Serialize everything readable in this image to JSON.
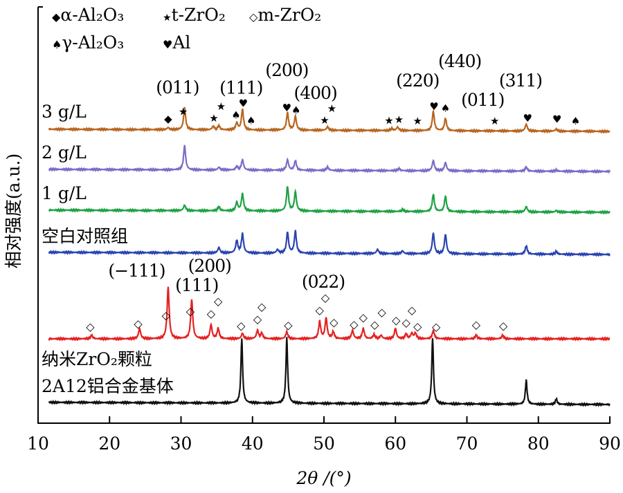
{
  "chart_data": {
    "type": "line",
    "title": "",
    "xlabel": "2θ /(°)",
    "ylabel": "相对强度(a.u.)",
    "xlim": [
      10,
      90
    ],
    "xticks": [
      "10",
      "20",
      "30",
      "40",
      "50",
      "60",
      "70",
      "80",
      "90"
    ],
    "grid": false,
    "legend": {
      "placement": "top-left",
      "entries": [
        {
          "symbol": "◆",
          "label": "α-Al₂O₃"
        },
        {
          "symbol": "★",
          "label": "t-ZrO₂"
        },
        {
          "symbol": "◇",
          "label": "m-ZrO₂"
        },
        {
          "symbol": "♠",
          "label": "γ-Al₂O₃"
        },
        {
          "symbol": "♥",
          "label": "Al"
        }
      ]
    },
    "series": [
      {
        "name": "3 g/L",
        "color": "#b8661f",
        "peaks": [
          [
            28.2,
            3
          ],
          [
            30.5,
            32
          ],
          [
            34.5,
            5
          ],
          [
            35.3,
            6
          ],
          [
            37.8,
            10
          ],
          [
            38.6,
            30
          ],
          [
            44.9,
            25
          ],
          [
            46.0,
            20
          ],
          [
            50.5,
            5
          ],
          [
            59.5,
            3
          ],
          [
            60.3,
            5
          ],
          [
            65.3,
            28
          ],
          [
            67.0,
            18
          ],
          [
            78.3,
            10
          ],
          [
            82.5,
            3
          ]
        ]
      },
      {
        "name": "2 g/L",
        "color": "#7a6cc8",
        "peaks": [
          [
            30.5,
            35
          ],
          [
            35.3,
            4
          ],
          [
            37.8,
            5
          ],
          [
            38.6,
            15
          ],
          [
            44.9,
            15
          ],
          [
            46.0,
            14
          ],
          [
            50.5,
            5
          ],
          [
            60.5,
            3
          ],
          [
            65.3,
            15
          ],
          [
            67.0,
            12
          ],
          [
            78.3,
            6
          ],
          [
            82.5,
            2
          ]
        ]
      },
      {
        "name": "1 g/L",
        "color": "#1ea244",
        "peaks": [
          [
            30.5,
            8
          ],
          [
            35.3,
            6
          ],
          [
            37.8,
            12
          ],
          [
            38.6,
            25
          ],
          [
            44.9,
            35
          ],
          [
            46.0,
            28
          ],
          [
            61.0,
            3
          ],
          [
            65.3,
            25
          ],
          [
            67.0,
            22
          ],
          [
            78.3,
            8
          ],
          [
            82.5,
            2
          ]
        ]
      },
      {
        "name": "空白对照组",
        "color": "#2a44b0",
        "peaks": [
          [
            35.3,
            8
          ],
          [
            37.8,
            18
          ],
          [
            38.6,
            28
          ],
          [
            43.5,
            5
          ],
          [
            44.9,
            30
          ],
          [
            46.0,
            32
          ],
          [
            57.5,
            6
          ],
          [
            61.0,
            4
          ],
          [
            65.3,
            30
          ],
          [
            67.0,
            28
          ],
          [
            78.3,
            12
          ],
          [
            82.5,
            4
          ]
        ]
      },
      {
        "name": "纳米ZrO₂颗粒",
        "color": "#e42222",
        "peaks": [
          [
            17.5,
            5
          ],
          [
            24.2,
            15
          ],
          [
            28.2,
            75
          ],
          [
            31.5,
            57
          ],
          [
            34.2,
            20
          ],
          [
            35.2,
            15
          ],
          [
            38.6,
            8
          ],
          [
            40.7,
            12
          ],
          [
            41.3,
            8
          ],
          [
            44.8,
            10
          ],
          [
            49.4,
            25
          ],
          [
            50.3,
            30
          ],
          [
            51.3,
            10
          ],
          [
            54.0,
            12
          ],
          [
            55.5,
            15
          ],
          [
            57.0,
            6
          ],
          [
            58.0,
            5
          ],
          [
            60.0,
            15
          ],
          [
            61.5,
            7
          ],
          [
            62.3,
            8
          ],
          [
            62.8,
            8
          ],
          [
            65.3,
            12
          ],
          [
            71.3,
            5
          ],
          [
            75.0,
            5
          ]
        ]
      },
      {
        "name": "2A12铝合金基体",
        "color": "#111111",
        "peaks": [
          [
            38.5,
            93
          ],
          [
            44.8,
            95
          ],
          [
            65.2,
            95
          ],
          [
            78.3,
            35
          ],
          [
            82.5,
            8
          ]
        ]
      }
    ],
    "markers": {
      "3 g/L": [
        [
          "◆",
          28.2
        ],
        [
          "★",
          30.3
        ],
        [
          "★",
          34.6
        ],
        [
          "★",
          35.6
        ],
        [
          "♠",
          37.7
        ],
        [
          "♥",
          38.7
        ],
        [
          "♠",
          39.8
        ],
        [
          "♥",
          44.8
        ],
        [
          "♠",
          46.1
        ],
        [
          "★",
          50.1
        ],
        [
          "★",
          51.1
        ],
        [
          "★",
          59.1
        ],
        [
          "★",
          60.5
        ],
        [
          "★",
          63.1
        ],
        [
          "♥",
          65.4
        ],
        [
          "♠",
          67.0
        ],
        [
          "★",
          73.9
        ],
        [
          "♥",
          78.5
        ],
        [
          "♥",
          82.6
        ],
        [
          "♠",
          85.2
        ]
      ],
      "纳米ZrO₂颗粒": [
        [
          "◇",
          17.3
        ],
        [
          "◇",
          24.0
        ],
        [
          "◇",
          27.9
        ],
        [
          "◇",
          31.3
        ],
        [
          "◇",
          34.2
        ],
        [
          "◇",
          35.2
        ],
        [
          "◇",
          38.4
        ],
        [
          "◇",
          40.7
        ],
        [
          "◇",
          41.3
        ],
        [
          "◇",
          45.0
        ],
        [
          "◇",
          49.4
        ],
        [
          "◇",
          50.2
        ],
        [
          "◇",
          51.4
        ],
        [
          "◇",
          54.2
        ],
        [
          "◇",
          55.5
        ],
        [
          "◇",
          57.1
        ],
        [
          "◇",
          58.1
        ],
        [
          "◇",
          60.1
        ],
        [
          "◇",
          61.5
        ],
        [
          "◇",
          62.3
        ],
        [
          "◇",
          63.1
        ],
        [
          "◇",
          65.7
        ],
        [
          "◇",
          71.3
        ],
        [
          "◇",
          75.1
        ]
      ]
    },
    "annotations": [
      {
        "text": "(011)",
        "x": 29.5,
        "series": "3 g/L"
      },
      {
        "text": "(111)",
        "x": 38.4,
        "series": "3 g/L"
      },
      {
        "text": "(200)",
        "x": 44.8,
        "series": "3 g/L"
      },
      {
        "text": "(400)",
        "x": 48.8,
        "series": "3 g/L"
      },
      {
        "text": "(220)",
        "x": 63.1,
        "series": "3 g/L"
      },
      {
        "text": "(440)",
        "x": 69.0,
        "series": "3 g/L"
      },
      {
        "text": "(011)",
        "x": 72.2,
        "series": "3 g/L"
      },
      {
        "text": "(311)",
        "x": 77.5,
        "series": "3 g/L"
      },
      {
        "text": "(−111)",
        "x": 23.8,
        "series": "纳米ZrO₂颗粒"
      },
      {
        "text": "(111)",
        "x": 32.2,
        "series": "纳米ZrO₂颗粒"
      },
      {
        "text": "(200)",
        "x": 34.0,
        "series": "纳米ZrO₂颗粒"
      },
      {
        "text": "(022)",
        "x": 49.9,
        "series": "纳米ZrO₂颗粒"
      }
    ]
  }
}
